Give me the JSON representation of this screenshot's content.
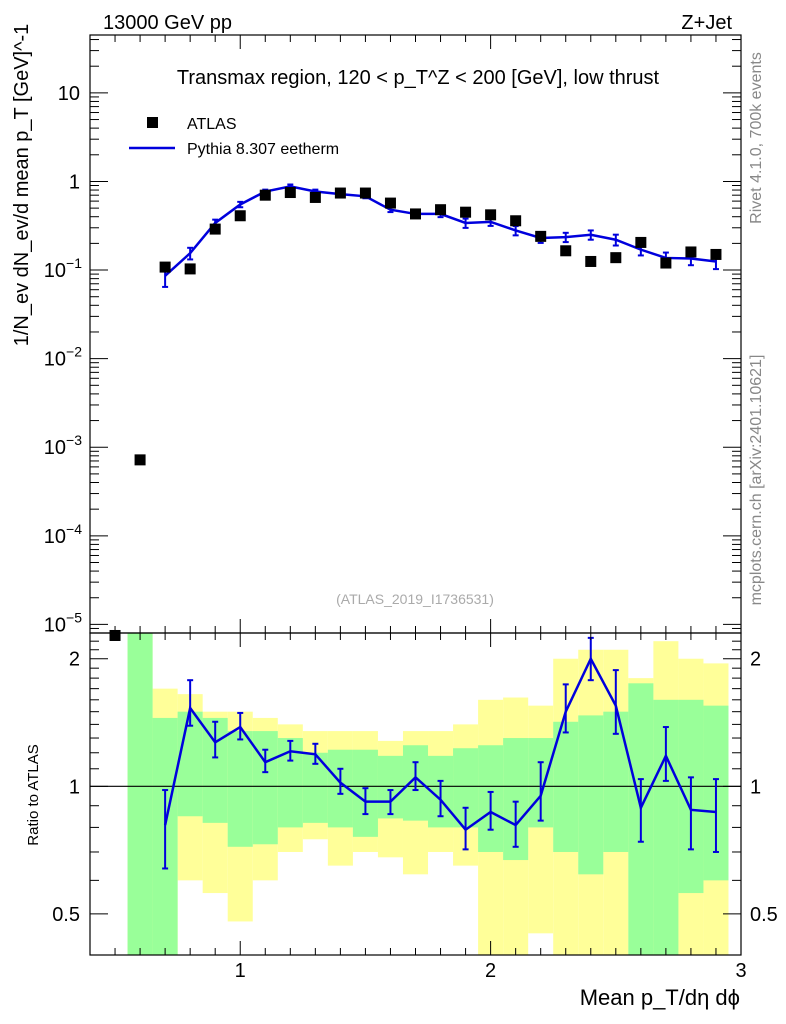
{
  "header": {
    "left_title": "13000 GeV pp",
    "right_title": "Z+Jet"
  },
  "side_labels": {
    "rivet": "Rivet 4.1.0,  700k events",
    "site": "mcplots.cern.ch [arXiv:2401.10621]"
  },
  "chart_data": {
    "type": "scatter",
    "title": "Transmax region, 120 < p_T^Z < 200 [GeV], low thrust",
    "watermark": "(ATLAS_2019_I1736531)",
    "xlabel": "Mean p_T/dη dϕ",
    "ylabel": "1/N_ev dN_ev/d mean p_T [GeV]^-1",
    "ratio_ylabel": "Ratio to ATLAS",
    "xlim": [
      0.4,
      3.0
    ],
    "ylim_log": [
      8e-06,
      45
    ],
    "ratio_ylim": [
      0.4,
      2.3
    ],
    "x_ticks": [
      "1",
      "2",
      "3"
    ],
    "y_ticks": [
      "10^-5",
      "10^-4",
      "10^-3",
      "10^-2",
      "10^-1",
      "1",
      "10"
    ],
    "ratio_ticks": [
      "0.5",
      "1",
      "2"
    ],
    "legend": {
      "position": "top-left",
      "entries": [
        "ATLAS",
        "Pythia 8.307 eetherm"
      ]
    },
    "colors": {
      "data": "#000000",
      "mc": "#0000dd",
      "band_inner": "#99ff99",
      "band_outer": "#ffff99"
    },
    "data": {
      "name": "ATLAS",
      "x": [
        0.5,
        0.6,
        0.7,
        0.8,
        0.9,
        1.0,
        1.1,
        1.2,
        1.3,
        1.4,
        1.5,
        1.6,
        1.7,
        1.8,
        1.9,
        2.0,
        2.1,
        2.2,
        2.3,
        2.4,
        2.5,
        2.6,
        2.7,
        2.8,
        2.9
      ],
      "y": [
        7.5e-06,
        0.00072,
        0.108,
        0.103,
        0.29,
        0.41,
        0.7,
        0.75,
        0.66,
        0.74,
        0.74,
        0.57,
        0.43,
        0.48,
        0.45,
        0.42,
        0.36,
        0.24,
        0.165,
        0.125,
        0.138,
        0.205,
        0.12,
        0.16,
        0.15
      ]
    },
    "mc": {
      "name": "Pythia 8.307 eetherm",
      "x": [
        0.7,
        0.8,
        0.9,
        1.0,
        1.1,
        1.2,
        1.3,
        1.4,
        1.5,
        1.6,
        1.7,
        1.8,
        1.9,
        2.0,
        2.1,
        2.2,
        2.3,
        2.4,
        2.5,
        2.6,
        2.7,
        2.8,
        2.9
      ],
      "y": [
        0.086,
        0.155,
        0.34,
        0.55,
        0.77,
        0.88,
        0.77,
        0.72,
        0.68,
        0.48,
        0.43,
        0.43,
        0.34,
        0.35,
        0.28,
        0.23,
        0.235,
        0.25,
        0.22,
        0.17,
        0.137,
        0.135,
        0.125
      ],
      "yerr_rel": [
        0.25,
        0.15,
        0.09,
        0.07,
        0.05,
        0.05,
        0.05,
        0.05,
        0.05,
        0.06,
        0.06,
        0.08,
        0.12,
        0.1,
        0.12,
        0.12,
        0.12,
        0.12,
        0.14,
        0.14,
        0.15,
        0.16,
        0.18
      ]
    },
    "ratio": {
      "x": [
        0.7,
        0.8,
        0.9,
        1.0,
        1.1,
        1.2,
        1.3,
        1.4,
        1.5,
        1.6,
        1.7,
        1.8,
        1.9,
        2.0,
        2.1,
        2.2,
        2.3,
        2.4,
        2.5,
        2.6,
        2.7,
        2.8,
        2.9
      ],
      "y": [
        0.81,
        1.53,
        1.27,
        1.38,
        1.14,
        1.21,
        1.19,
        1.02,
        0.92,
        0.92,
        1.05,
        0.93,
        0.79,
        0.87,
        0.81,
        0.95,
        1.5,
        2.0,
        1.55,
        0.89,
        1.18,
        0.88,
        0.87
      ],
      "err_lo": [
        0.17,
        0.14,
        0.1,
        0.09,
        0.06,
        0.06,
        0.06,
        0.06,
        0.06,
        0.06,
        0.07,
        0.08,
        0.08,
        0.08,
        0.09,
        0.12,
        0.16,
        0.22,
        0.22,
        0.15,
        0.15,
        0.17,
        0.17
      ],
      "err_hi": [
        0.17,
        0.25,
        0.15,
        0.11,
        0.08,
        0.07,
        0.07,
        0.08,
        0.07,
        0.06,
        0.09,
        0.1,
        0.1,
        0.1,
        0.11,
        0.19,
        0.24,
        0.24,
        0.33,
        0.15,
        0.2,
        0.17,
        0.17
      ]
    },
    "bands": {
      "edges": [
        0.55,
        0.65,
        0.75,
        0.85,
        0.95,
        1.05,
        1.15,
        1.25,
        1.35,
        1.45,
        1.55,
        1.65,
        1.75,
        1.85,
        1.95,
        2.05,
        2.15,
        2.25,
        2.35,
        2.45,
        2.55,
        2.65,
        2.75,
        2.85,
        2.95
      ],
      "inner_lo": [
        0.35,
        0.35,
        0.85,
        0.82,
        0.72,
        0.73,
        0.8,
        0.82,
        0.8,
        0.76,
        0.84,
        0.83,
        0.8,
        0.8,
        0.7,
        0.67,
        0.8,
        0.7,
        0.62,
        0.7,
        0.35,
        0.35,
        0.56,
        0.6
      ],
      "inner_hi": [
        2.3,
        1.45,
        1.5,
        1.45,
        1.35,
        1.35,
        1.3,
        1.2,
        1.22,
        1.22,
        1.18,
        1.25,
        1.18,
        1.23,
        1.25,
        1.3,
        1.3,
        1.42,
        1.47,
        1.5,
        1.75,
        1.6,
        1.6,
        1.55
      ],
      "outer_lo": [
        0.35,
        0.35,
        0.6,
        0.56,
        0.48,
        0.6,
        0.7,
        0.75,
        0.65,
        0.7,
        0.68,
        0.62,
        0.7,
        0.65,
        0.35,
        0.35,
        0.45,
        0.35,
        0.35,
        0.35,
        0.35,
        0.35,
        0.35,
        0.35
      ],
      "outer_hi": [
        2.3,
        1.7,
        1.65,
        1.5,
        1.5,
        1.45,
        1.4,
        1.35,
        1.35,
        1.35,
        1.28,
        1.35,
        1.35,
        1.4,
        1.6,
        1.62,
        1.55,
        2.0,
        2.1,
        2.1,
        1.8,
        2.2,
        2.0,
        1.95
      ]
    }
  }
}
